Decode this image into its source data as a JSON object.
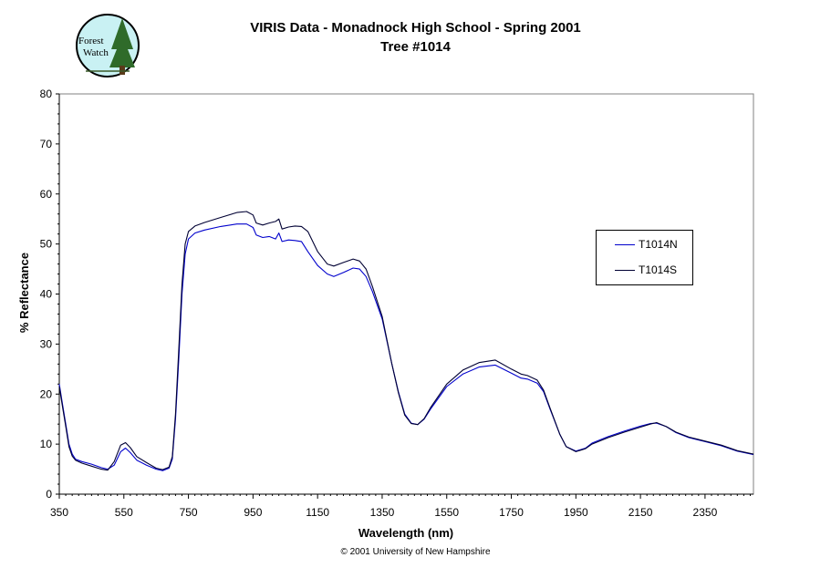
{
  "logo": {
    "line1": "Forest",
    "line2": "Watch",
    "fill": "#c9f1f3",
    "tree_color": "#2f6b2a"
  },
  "footer": {
    "copyright": "© 2001 University of New Hampshire"
  },
  "chart_data": {
    "type": "line",
    "title": "VIRIS Data - Monadnock High School - Spring 2001",
    "subtitle": "Tree #1014",
    "xlabel": "Wavelength (nm)",
    "ylabel": "% Reflectance",
    "xlim": [
      350,
      2500
    ],
    "ylim": [
      0,
      80
    ],
    "x_ticks": [
      350,
      550,
      750,
      950,
      1150,
      1350,
      1550,
      1750,
      1950,
      2150,
      2350
    ],
    "y_ticks": [
      0,
      10,
      20,
      30,
      40,
      50,
      60,
      70,
      80
    ],
    "grid": false,
    "legend_position": "right",
    "series": [
      {
        "name": "T1014N",
        "color": "#0000cc",
        "points": [
          [
            350,
            22
          ],
          [
            360,
            18
          ],
          [
            370,
            14
          ],
          [
            380,
            10
          ],
          [
            390,
            8
          ],
          [
            400,
            7
          ],
          [
            420,
            6.5
          ],
          [
            450,
            6
          ],
          [
            480,
            5.3
          ],
          [
            500,
            5
          ],
          [
            520,
            5.8
          ],
          [
            540,
            8.5
          ],
          [
            555,
            9.2
          ],
          [
            570,
            8.3
          ],
          [
            590,
            6.8
          ],
          [
            620,
            5.8
          ],
          [
            650,
            5
          ],
          [
            670,
            4.7
          ],
          [
            690,
            5.2
          ],
          [
            700,
            7
          ],
          [
            710,
            15
          ],
          [
            720,
            27
          ],
          [
            730,
            40
          ],
          [
            740,
            48
          ],
          [
            750,
            51
          ],
          [
            770,
            52.2
          ],
          [
            800,
            52.8
          ],
          [
            850,
            53.5
          ],
          [
            900,
            54
          ],
          [
            930,
            54
          ],
          [
            950,
            53.3
          ],
          [
            960,
            51.8
          ],
          [
            980,
            51.3
          ],
          [
            1000,
            51.5
          ],
          [
            1020,
            51
          ],
          [
            1030,
            52.2
          ],
          [
            1040,
            50.5
          ],
          [
            1060,
            50.8
          ],
          [
            1080,
            50.7
          ],
          [
            1100,
            50.5
          ],
          [
            1120,
            48.5
          ],
          [
            1150,
            45.7
          ],
          [
            1180,
            44
          ],
          [
            1200,
            43.5
          ],
          [
            1230,
            44.3
          ],
          [
            1260,
            45.2
          ],
          [
            1280,
            45
          ],
          [
            1300,
            43.5
          ],
          [
            1320,
            40.5
          ],
          [
            1350,
            35
          ],
          [
            1380,
            26
          ],
          [
            1400,
            20.5
          ],
          [
            1420,
            16
          ],
          [
            1440,
            14.2
          ],
          [
            1460,
            13.9
          ],
          [
            1480,
            15
          ],
          [
            1500,
            17
          ],
          [
            1550,
            21.5
          ],
          [
            1600,
            24
          ],
          [
            1650,
            25.4
          ],
          [
            1700,
            25.8
          ],
          [
            1750,
            24.2
          ],
          [
            1780,
            23.2
          ],
          [
            1800,
            23
          ],
          [
            1830,
            22.2
          ],
          [
            1850,
            20.5
          ],
          [
            1870,
            17
          ],
          [
            1900,
            12
          ],
          [
            1920,
            9.5
          ],
          [
            1950,
            8.6
          ],
          [
            1980,
            9.2
          ],
          [
            2000,
            10.2
          ],
          [
            2050,
            11.5
          ],
          [
            2100,
            12.6
          ],
          [
            2150,
            13.6
          ],
          [
            2180,
            14.1
          ],
          [
            2200,
            14.2
          ],
          [
            2230,
            13.5
          ],
          [
            2260,
            12.3
          ],
          [
            2300,
            11.3
          ],
          [
            2350,
            10.5
          ],
          [
            2400,
            9.7
          ],
          [
            2450,
            8.6
          ],
          [
            2500,
            7.9
          ]
        ]
      },
      {
        "name": "T1014S",
        "color": "#000033",
        "points": [
          [
            350,
            21.5
          ],
          [
            360,
            17.5
          ],
          [
            370,
            13.5
          ],
          [
            380,
            9.5
          ],
          [
            390,
            7.6
          ],
          [
            400,
            6.8
          ],
          [
            420,
            6.2
          ],
          [
            450,
            5.6
          ],
          [
            480,
            5
          ],
          [
            500,
            4.8
          ],
          [
            520,
            6.5
          ],
          [
            540,
            9.8
          ],
          [
            555,
            10.3
          ],
          [
            570,
            9.3
          ],
          [
            590,
            7.5
          ],
          [
            620,
            6.3
          ],
          [
            650,
            5.2
          ],
          [
            670,
            4.9
          ],
          [
            690,
            5.4
          ],
          [
            700,
            7.5
          ],
          [
            710,
            16
          ],
          [
            720,
            29
          ],
          [
            730,
            42
          ],
          [
            740,
            50
          ],
          [
            750,
            52.5
          ],
          [
            770,
            53.6
          ],
          [
            800,
            54.3
          ],
          [
            850,
            55.3
          ],
          [
            900,
            56.3
          ],
          [
            930,
            56.5
          ],
          [
            950,
            55.8
          ],
          [
            960,
            54.2
          ],
          [
            980,
            53.8
          ],
          [
            1000,
            54.2
          ],
          [
            1020,
            54.5
          ],
          [
            1030,
            55
          ],
          [
            1040,
            53
          ],
          [
            1060,
            53.4
          ],
          [
            1080,
            53.6
          ],
          [
            1100,
            53.5
          ],
          [
            1120,
            52.5
          ],
          [
            1150,
            48.5
          ],
          [
            1180,
            46
          ],
          [
            1200,
            45.6
          ],
          [
            1230,
            46.3
          ],
          [
            1260,
            47
          ],
          [
            1280,
            46.6
          ],
          [
            1300,
            45
          ],
          [
            1320,
            41.5
          ],
          [
            1350,
            35.5
          ],
          [
            1380,
            26
          ],
          [
            1400,
            20.3
          ],
          [
            1420,
            15.8
          ],
          [
            1440,
            14.1
          ],
          [
            1460,
            13.9
          ],
          [
            1480,
            15.1
          ],
          [
            1500,
            17.3
          ],
          [
            1550,
            22
          ],
          [
            1600,
            24.8
          ],
          [
            1650,
            26.3
          ],
          [
            1700,
            26.8
          ],
          [
            1750,
            25
          ],
          [
            1780,
            24
          ],
          [
            1800,
            23.7
          ],
          [
            1830,
            22.8
          ],
          [
            1850,
            20.8
          ],
          [
            1870,
            17.2
          ],
          [
            1900,
            12
          ],
          [
            1920,
            9.5
          ],
          [
            1950,
            8.5
          ],
          [
            1980,
            9.1
          ],
          [
            2000,
            10
          ],
          [
            2050,
            11.3
          ],
          [
            2100,
            12.4
          ],
          [
            2150,
            13.4
          ],
          [
            2180,
            14
          ],
          [
            2200,
            14.3
          ],
          [
            2230,
            13.5
          ],
          [
            2260,
            12.4
          ],
          [
            2300,
            11.4
          ],
          [
            2350,
            10.6
          ],
          [
            2400,
            9.8
          ],
          [
            2450,
            8.7
          ],
          [
            2500,
            8
          ]
        ]
      }
    ]
  }
}
